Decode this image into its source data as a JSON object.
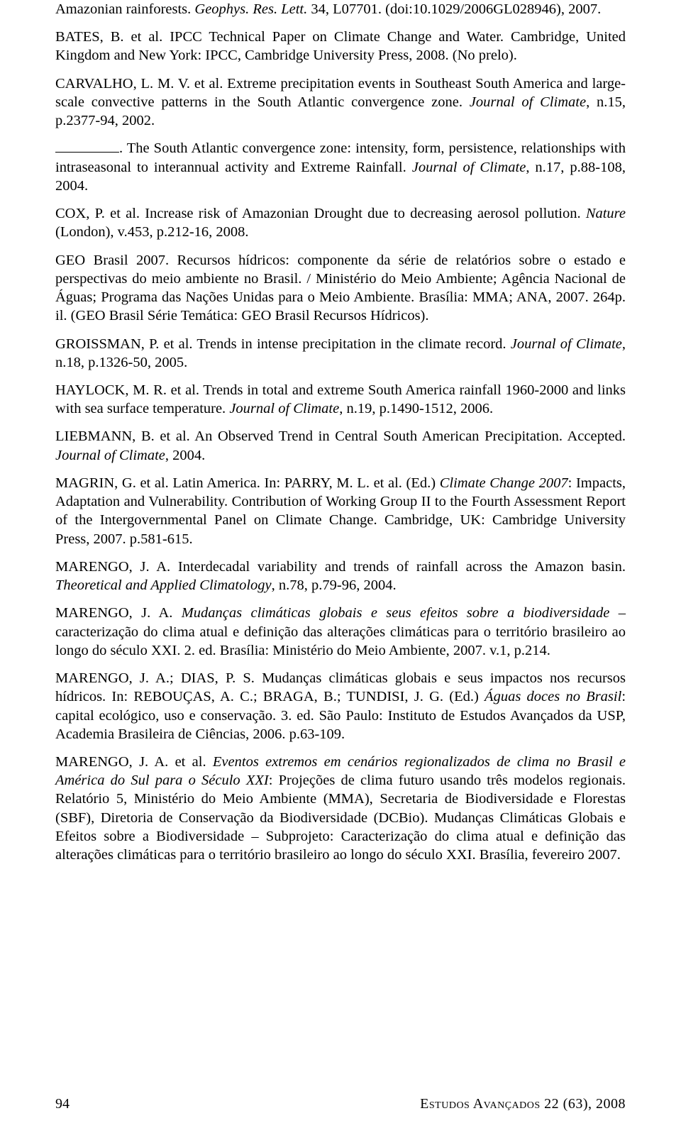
{
  "entries": [
    {
      "html": "Amazonian rainforests. <span class='italic'>Geophys. Res. Lett.</span> 34, L07701. (doi:10.1029/2006GL028946), 2007."
    },
    {
      "html": "BATES, B. et al. IPCC Technical Paper on Climate Change and Water. Cambridge, United Kingdom and New York: IPCC, Cambridge University Press, 2008. (No prelo)."
    },
    {
      "html": "CARVALHO, L. M. V. et al. Extreme precipitation events in Southeast South America and large-scale convective patterns in the South Atlantic convergence zone. <span class='italic'>Journal of Climate</span>, n.15, p.2377-94, 2002."
    },
    {
      "html": "<span class='blank'></span>. The South Atlantic convergence zone: intensity, form, persistence, relationships with intraseasonal to interannual activity and Extreme Rainfall. <span class='italic'>Journal of Climate</span>, n.17, p.88-108, 2004."
    },
    {
      "html": "COX, P. et al. Increase risk of Amazonian Drought due to decreasing aerosol pollution. <span class='italic'>Nature</span> (London), v.453, p.212-16, 2008."
    },
    {
      "html": "GEO Brasil 2007. Recursos hídricos: componente da série de relatórios sobre o estado e perspectivas do meio ambiente no Brasil. / Ministério do Meio Ambiente; Agência Nacional de Águas; Programa das Nações Unidas para o Meio Ambiente. Brasília: MMA; ANA, 2007. 264p. il. (GEO Brasil Série Temática: GEO Brasil Recursos Hídricos)."
    },
    {
      "html": "GROISSMAN, P. et al. Trends in intense precipitation in the climate record. <span class='italic'>Journal of Climate</span>, n.18, p.1326-50, 2005."
    },
    {
      "html": "HAYLOCK, M. R. et al. Trends in total and extreme South America rainfall 1960-2000 and links with sea surface temperature. <span class='italic'>Journal of Climate</span>, n.19, p.1490-1512, 2006."
    },
    {
      "html": "LIEBMANN, B. et al. An Observed Trend in Central South American Precipitation. Accepted. <span class='italic'>Journal of Climate</span>, 2004."
    },
    {
      "html": "MAGRIN, G. et al. Latin America. In: PARRY, M. L. et al. (Ed.) <span class='italic'>Climate Change 2007</span>: Impacts, Adaptation and Vulnerability. Contribution of Working Group II to the Fourth Assessment Report of the Intergovernmental Panel on Climate Change. Cambridge, UK: Cambridge University Press, 2007. p.581-615."
    },
    {
      "html": "MARENGO, J. A. Interdecadal variability and trends of rainfall across the Amazon basin. <span class='italic'>Theoretical and Applied Climatology</span>, n.78, p.79-96, 2004."
    },
    {
      "html": "MARENGO, J. A. <span class='italic'>Mudanças climáticas globais e seus efeitos sobre a biodiversidade</span> – caracterização do clima atual e definição das alterações climáticas para o território brasileiro ao longo do século XXI. 2. ed. Brasília: Ministério do Meio Ambiente, 2007. v.1, p.214."
    },
    {
      "html": "MARENGO, J. A.; DIAS, P. S. Mudanças climáticas globais e seus impactos nos recursos hídricos. In: REBOUÇAS, A. C.; BRAGA, B.; TUNDISI, J. G. (Ed.) <span class='italic'>Águas doces no Brasil</span>: capital ecológico, uso e conservação. 3. ed. São Paulo: Instituto de Estudos Avançados da USP, Academia Brasileira de Ciências, 2006. p.63-109."
    },
    {
      "html": "MARENGO, J. A. et al. <span class='italic'>Eventos extremos em cenários regionalizados de clima no Brasil e América do Sul para o Século XXI</span>: Projeções de clima futuro usando três modelos regionais. Relatório 5, Ministério do Meio Ambiente (MMA), Secretaria de Biodiversidade e Florestas (SBF), Diretoria de Conservação da Biodiversidade (DCBio). Mudanças Climáticas Globais e Efeitos sobre a Biodiversidade – Subprojeto: Caracterização do clima atual e definição das alterações climáticas para o território brasileiro ao longo do século XXI. Brasília, fevereiro 2007."
    }
  ],
  "footer": {
    "page": "94",
    "journal": "Estudos Avançados",
    "issue": " 22 (63), 2008"
  }
}
